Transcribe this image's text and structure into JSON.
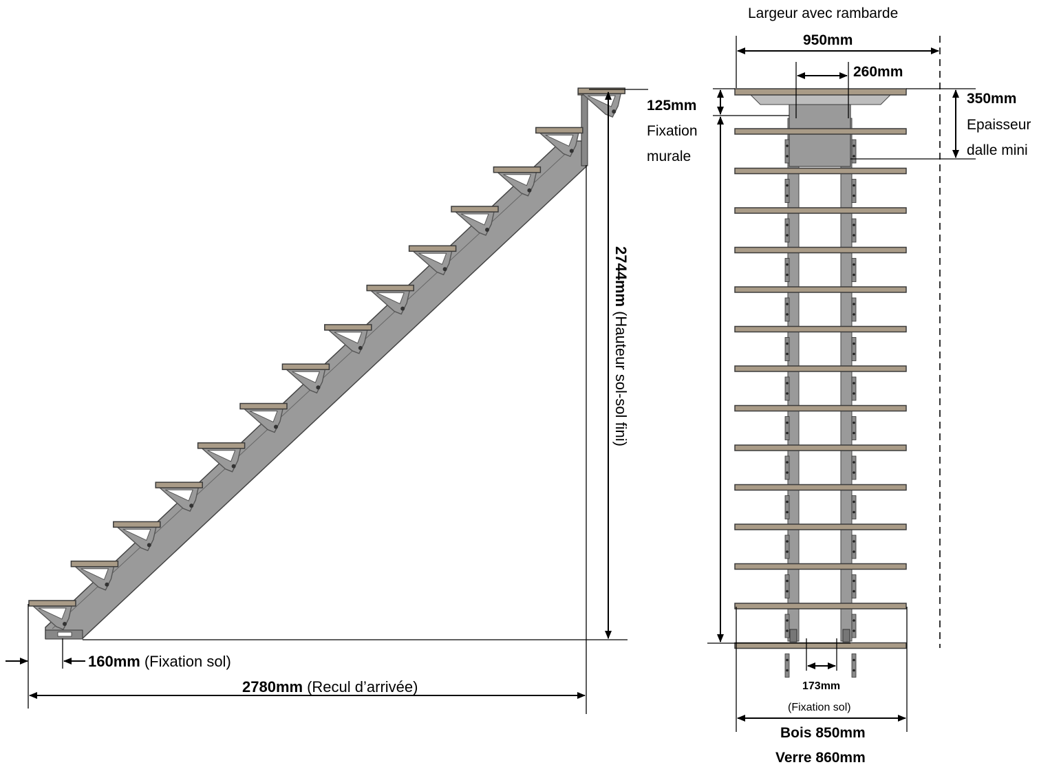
{
  "side_view": {
    "height_value": "2744mm",
    "height_caption": "(Hauteur sol-sol fini)",
    "floor_fix_value": "160mm",
    "floor_fix_caption": "(Fixation sol)",
    "run_value": "2780mm",
    "run_caption": "(Recul d’arrivée)",
    "tread_count": 14
  },
  "front_view": {
    "title": "Largeur avec rambarde",
    "width_rail": "950mm",
    "stringer_spacing": "260mm",
    "wall_fix_value": "125mm",
    "wall_fix_caption_1": "Fixation",
    "wall_fix_caption_2": "murale",
    "slab_value": "350mm",
    "slab_caption_1": "Epaisseur",
    "slab_caption_2": "dalle mini",
    "floor_fix_value": "173mm",
    "floor_fix_caption": "(Fixation sol)",
    "wood_width": "Bois 850mm",
    "glass_width": "Verre 860mm",
    "tread_count": 14
  },
  "colors": {
    "steel": "#999999",
    "steel_dark": "#555555",
    "wood": "#a99b87",
    "wood_dark": "#3b3b3b",
    "line": "#000000"
  }
}
